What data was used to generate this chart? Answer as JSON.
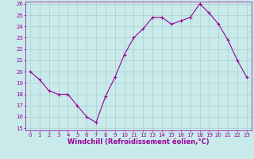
{
  "x": [
    0,
    1,
    2,
    3,
    4,
    5,
    6,
    7,
    8,
    9,
    10,
    11,
    12,
    13,
    14,
    15,
    16,
    17,
    18,
    19,
    20,
    21,
    22,
    23
  ],
  "y": [
    20,
    19.3,
    18.3,
    18.0,
    18.0,
    17.0,
    16.0,
    15.5,
    17.8,
    19.5,
    21.5,
    23.0,
    23.8,
    24.8,
    24.8,
    24.2,
    24.5,
    24.8,
    26.0,
    25.2,
    24.2,
    22.8,
    21.0,
    19.5
  ],
  "line_color": "#990099",
  "marker": "+",
  "marker_size": 3,
  "bg_color": "#c8eaea",
  "grid_color": "#aacccc",
  "xlabel": "Windchill (Refroidissement éolien,°C)",
  "xlabel_color": "#990099",
  "tick_color": "#990099",
  "ylim": [
    15,
    26
  ],
  "xlim": [
    -0.5,
    23.5
  ],
  "yticks": [
    15,
    16,
    17,
    18,
    19,
    20,
    21,
    22,
    23,
    24,
    25,
    26
  ],
  "xticks": [
    0,
    1,
    2,
    3,
    4,
    5,
    6,
    7,
    8,
    9,
    10,
    11,
    12,
    13,
    14,
    15,
    16,
    17,
    18,
    19,
    20,
    21,
    22,
    23
  ],
  "tick_fontsize": 5.0,
  "xlabel_fontsize": 6.0,
  "linewidth": 0.8,
  "markeredgewidth": 0.8
}
